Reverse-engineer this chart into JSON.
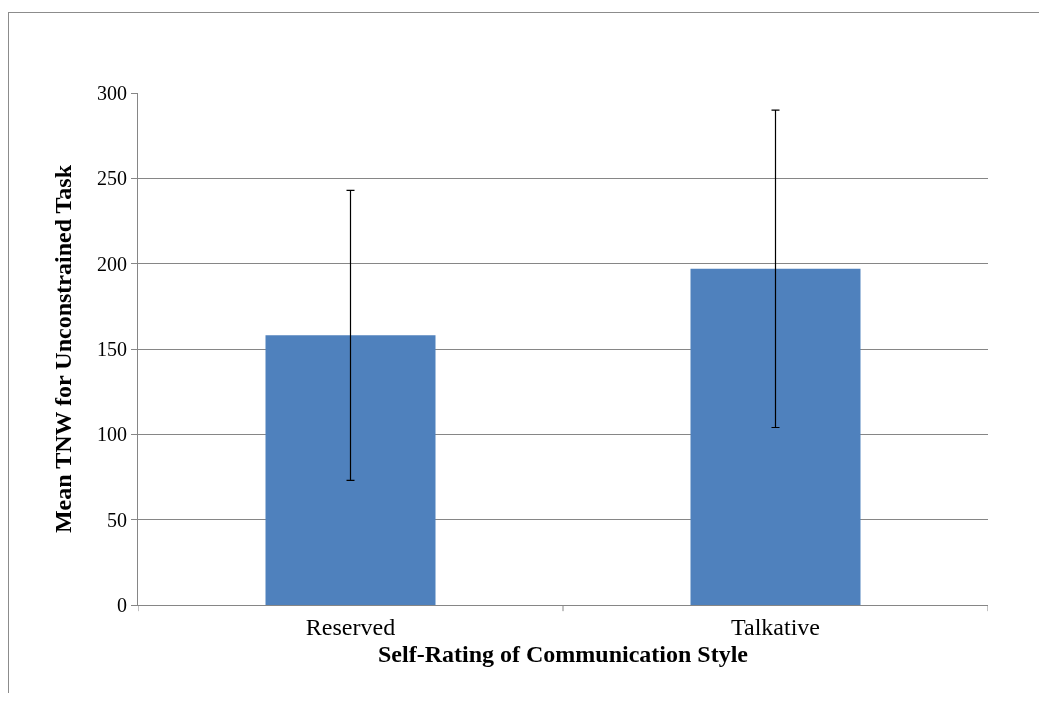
{
  "chart_data": {
    "type": "bar",
    "categories": [
      "Reserved",
      "Talkative"
    ],
    "values": [
      158,
      197
    ],
    "errors": [
      85,
      93
    ],
    "color": "#4f81bd",
    "xlabel": "Self-Rating of Communication Style",
    "ylabel": "Mean TNW for Unconstrained Task",
    "ylim": [
      0,
      300
    ],
    "yticks": [
      0,
      50,
      100,
      150,
      200,
      250,
      300
    ],
    "grid": "y"
  }
}
